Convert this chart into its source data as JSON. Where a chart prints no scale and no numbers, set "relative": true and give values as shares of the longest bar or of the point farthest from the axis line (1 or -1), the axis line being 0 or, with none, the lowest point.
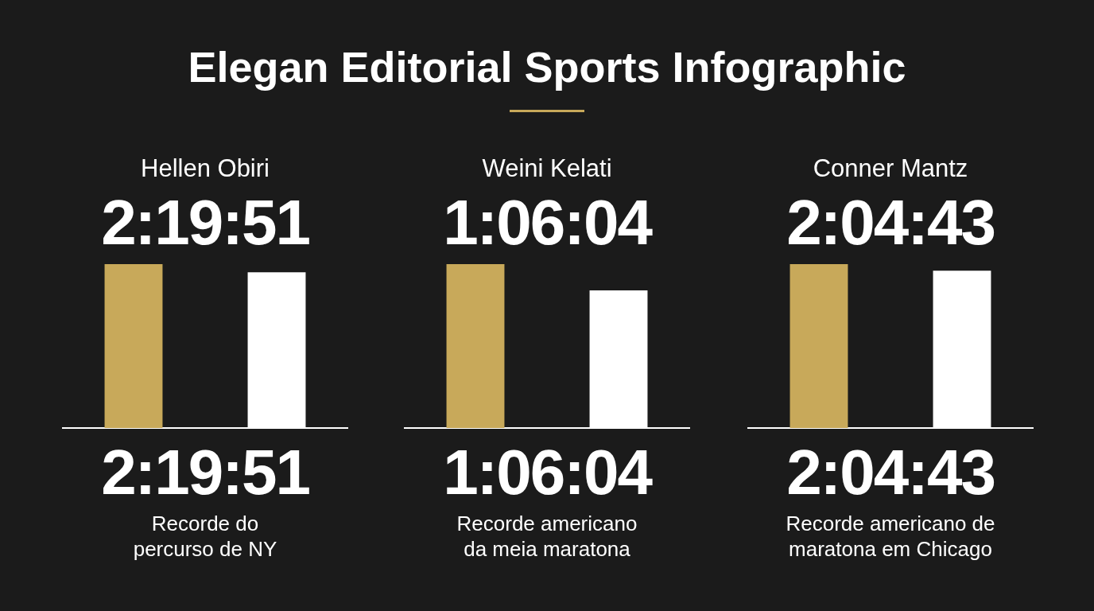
{
  "chart_data": [
    {
      "type": "other",
      "title": "Elegan Editorial Sports Infographic"
    },
    {
      "type": "bar",
      "title": "Hellen Obiri",
      "subtitle": "2:19:51",
      "categories": [
        null,
        null
      ],
      "values": [
        1,
        0.95
      ],
      "colors": [
        "#c8a95a",
        "#ffffff"
      ],
      "relative": true,
      "annotations": [
        "2:19:51",
        "Recorde do\npercurso de NY"
      ]
    },
    {
      "type": "bar",
      "title": "Weini Kelati",
      "subtitle": "1:06:04",
      "categories": [
        null,
        null
      ],
      "values": [
        1,
        0.84
      ],
      "colors": [
        "#c8a95a",
        "#ffffff"
      ],
      "relative": true,
      "annotations": [
        "1:06:04",
        "Recorde americano\nda meia maratona"
      ]
    },
    {
      "type": "bar",
      "title": "Conner Mantz",
      "subtitle": "2:04:43",
      "categories": [
        null,
        null
      ],
      "values": [
        1,
        0.96
      ],
      "colors": [
        "#c8a95a",
        "#ffffff"
      ],
      "relative": true,
      "annotations": [
        "2:04:43",
        "Recorde americano de\nmaratona em Chicago"
      ]
    }
  ]
}
